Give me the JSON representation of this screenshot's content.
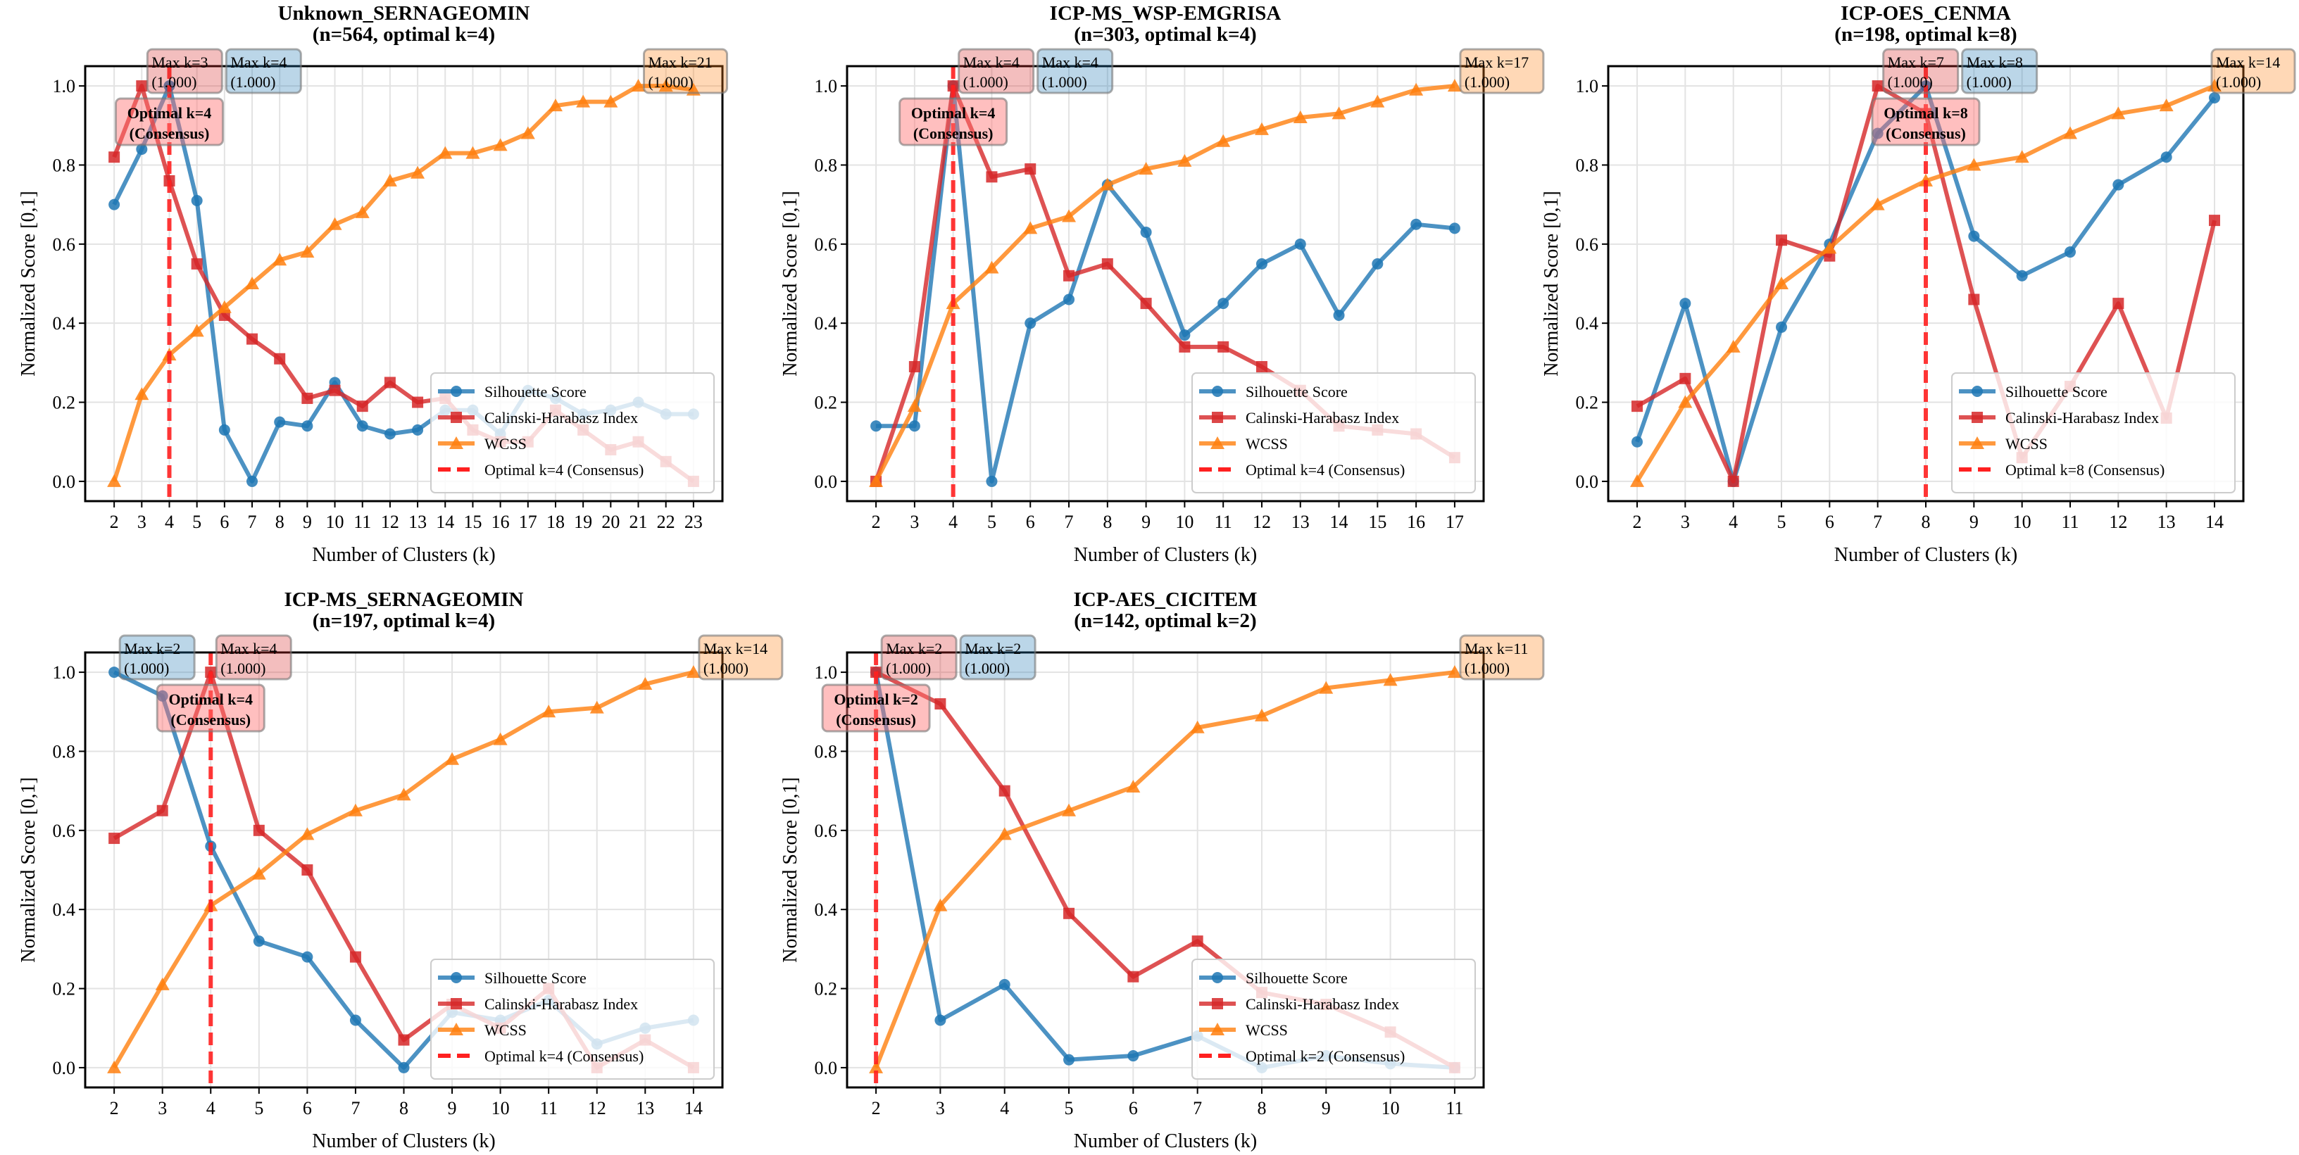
{
  "colors": {
    "silhouette": "#1f77b4",
    "calinski_harabasz": "#d62728",
    "wcss": "#ff7f0e",
    "optimal": "#ff2020"
  },
  "chart_data": [
    {
      "type": "line",
      "title": "Unknown_SERNAGEOMIN",
      "subtitle": "(n=564, optimal k=4)",
      "xlabel": "Number of Clusters (k)",
      "ylabel": "Normalized Score [0,1]",
      "yticks": [
        "0.0",
        "0.2",
        "0.4",
        "0.6",
        "0.8",
        "1.0"
      ],
      "ylim": [
        -0.05,
        1.05
      ],
      "grid": true,
      "legend_placement": "lower-right",
      "k": [
        2,
        3,
        4,
        5,
        6,
        7,
        8,
        9,
        10,
        11,
        12,
        13,
        14,
        15,
        16,
        17,
        18,
        19,
        20,
        21,
        22,
        23
      ],
      "optimal_k": 4,
      "optimal_box": [
        "Optimal k=4",
        "(Consensus)"
      ],
      "optimal_legend": "Optimal k=4 (Consensus)",
      "series": [
        {
          "key": "silhouette",
          "name": "Silhouette Score",
          "marker": "circle",
          "values": [
            0.7,
            0.84,
            1.0,
            0.71,
            0.13,
            0.0,
            0.15,
            0.14,
            0.25,
            0.14,
            0.12,
            0.13,
            0.18,
            0.18,
            0.12,
            0.23,
            0.21,
            0.17,
            0.18,
            0.2,
            0.17,
            0.17
          ]
        },
        {
          "key": "calinski_harabasz",
          "name": "Calinski-Harabasz Index",
          "marker": "square",
          "values": [
            0.82,
            1.0,
            0.76,
            0.55,
            0.42,
            0.36,
            0.31,
            0.21,
            0.23,
            0.19,
            0.25,
            0.2,
            0.21,
            0.13,
            0.1,
            0.1,
            0.18,
            0.13,
            0.08,
            0.1,
            0.05,
            0.0
          ]
        },
        {
          "key": "wcss",
          "name": "WCSS",
          "marker": "triangle",
          "values": [
            0.0,
            0.22,
            0.32,
            0.38,
            0.44,
            0.5,
            0.56,
            0.58,
            0.65,
            0.68,
            0.76,
            0.78,
            0.83,
            0.83,
            0.85,
            0.88,
            0.95,
            0.96,
            0.96,
            1.0,
            1.0,
            0.99
          ]
        }
      ],
      "annotations": [
        {
          "series": "calinski_harabasz",
          "k": 3,
          "label": "Max k=3",
          "value": "(1.000)"
        },
        {
          "series": "silhouette",
          "k": 4,
          "label": "Max k=4",
          "value": "(1.000)"
        },
        {
          "series": "wcss",
          "k": 21,
          "label": "Max k=21",
          "value": "(1.000)"
        }
      ]
    },
    {
      "type": "line",
      "title": "ICP-MS_WSP-EMGRISA",
      "subtitle": "(n=303, optimal k=4)",
      "xlabel": "Number of Clusters (k)",
      "ylabel": "Normalized Score [0,1]",
      "yticks": [
        "0.0",
        "0.2",
        "0.4",
        "0.6",
        "0.8",
        "1.0"
      ],
      "ylim": [
        -0.05,
        1.05
      ],
      "grid": true,
      "legend_placement": "lower-right",
      "k": [
        2,
        3,
        4,
        5,
        6,
        7,
        8,
        9,
        10,
        11,
        12,
        13,
        14,
        15,
        16,
        17
      ],
      "optimal_k": 4,
      "optimal_box": [
        "Optimal k=4",
        "(Consensus)"
      ],
      "optimal_legend": "Optimal k=4 (Consensus)",
      "series": [
        {
          "key": "silhouette",
          "name": "Silhouette Score",
          "marker": "circle",
          "values": [
            0.14,
            0.14,
            1.0,
            0.0,
            0.4,
            0.46,
            0.75,
            0.63,
            0.37,
            0.45,
            0.55,
            0.6,
            0.42,
            0.55,
            0.65,
            0.64
          ]
        },
        {
          "key": "calinski_harabasz",
          "name": "Calinski-Harabasz Index",
          "marker": "square",
          "values": [
            0.0,
            0.29,
            1.0,
            0.77,
            0.79,
            0.52,
            0.55,
            0.45,
            0.34,
            0.34,
            0.29,
            0.23,
            0.14,
            0.13,
            0.12,
            0.06
          ]
        },
        {
          "key": "wcss",
          "name": "WCSS",
          "marker": "triangle",
          "values": [
            0.0,
            0.19,
            0.45,
            0.54,
            0.64,
            0.67,
            0.75,
            0.79,
            0.81,
            0.86,
            0.89,
            0.92,
            0.93,
            0.96,
            0.99,
            1.0
          ]
        }
      ],
      "annotations": [
        {
          "series": "calinski_harabasz",
          "k": 4,
          "label": "Max k=4",
          "value": "(1.000)"
        },
        {
          "series": "silhouette",
          "k": 4,
          "label": "Max k=4",
          "value": "(1.000)"
        },
        {
          "series": "wcss",
          "k": 17,
          "label": "Max k=17",
          "value": "(1.000)"
        }
      ]
    },
    {
      "type": "line",
      "title": "ICP-OES_CENMA",
      "subtitle": "(n=198, optimal k=8)",
      "xlabel": "Number of Clusters (k)",
      "ylabel": "Normalized Score [0,1]",
      "yticks": [
        "0.0",
        "0.2",
        "0.4",
        "0.6",
        "0.8",
        "1.0"
      ],
      "ylim": [
        -0.05,
        1.05
      ],
      "grid": true,
      "legend_placement": "lower-right",
      "k": [
        2,
        3,
        4,
        5,
        6,
        7,
        8,
        9,
        10,
        11,
        12,
        13,
        14
      ],
      "optimal_k": 8,
      "optimal_box": [
        "Optimal k=8",
        "(Consensus)"
      ],
      "optimal_legend": "Optimal k=8 (Consensus)",
      "series": [
        {
          "key": "silhouette",
          "name": "Silhouette Score",
          "marker": "circle",
          "values": [
            0.1,
            0.45,
            0.0,
            0.39,
            0.6,
            0.88,
            1.0,
            0.62,
            0.52,
            0.58,
            0.75,
            0.82,
            0.97
          ]
        },
        {
          "key": "calinski_harabasz",
          "name": "Calinski-Harabasz Index",
          "marker": "square",
          "values": [
            0.19,
            0.26,
            0.0,
            0.61,
            0.57,
            1.0,
            0.93,
            0.46,
            0.06,
            0.24,
            0.45,
            0.16,
            0.66
          ]
        },
        {
          "key": "wcss",
          "name": "WCSS",
          "marker": "triangle",
          "values": [
            0.0,
            0.2,
            0.34,
            0.5,
            0.59,
            0.7,
            0.76,
            0.8,
            0.82,
            0.88,
            0.93,
            0.95,
            1.0
          ]
        }
      ],
      "annotations": [
        {
          "series": "calinski_harabasz",
          "k": 7,
          "label": "Max k=7",
          "value": "(1.000)"
        },
        {
          "series": "silhouette",
          "k": 8,
          "label": "Max k=8",
          "value": "(1.000)"
        },
        {
          "series": "wcss",
          "k": 14,
          "label": "Max k=14",
          "value": "(1.000)"
        }
      ]
    },
    {
      "type": "line",
      "title": "ICP-MS_SERNAGEOMIN",
      "subtitle": "(n=197, optimal k=4)",
      "xlabel": "Number of Clusters (k)",
      "ylabel": "Normalized Score [0,1]",
      "yticks": [
        "0.0",
        "0.2",
        "0.4",
        "0.6",
        "0.8",
        "1.0"
      ],
      "ylim": [
        -0.05,
        1.05
      ],
      "grid": true,
      "legend_placement": "lower-right",
      "k": [
        2,
        3,
        4,
        5,
        6,
        7,
        8,
        9,
        10,
        11,
        12,
        13,
        14
      ],
      "optimal_k": 4,
      "optimal_box": [
        "Optimal k=4",
        "(Consensus)"
      ],
      "optimal_legend": "Optimal k=4 (Consensus)",
      "series": [
        {
          "key": "silhouette",
          "name": "Silhouette Score",
          "marker": "circle",
          "values": [
            1.0,
            0.94,
            0.56,
            0.32,
            0.28,
            0.12,
            0.0,
            0.14,
            0.12,
            0.17,
            0.06,
            0.1,
            0.12
          ]
        },
        {
          "key": "calinski_harabasz",
          "name": "Calinski-Harabasz Index",
          "marker": "square",
          "values": [
            0.58,
            0.65,
            1.0,
            0.6,
            0.5,
            0.28,
            0.07,
            0.16,
            0.1,
            0.2,
            0.0,
            0.07,
            0.0
          ]
        },
        {
          "key": "wcss",
          "name": "WCSS",
          "marker": "triangle",
          "values": [
            0.0,
            0.21,
            0.41,
            0.49,
            0.59,
            0.65,
            0.69,
            0.78,
            0.83,
            0.9,
            0.91,
            0.97,
            1.0
          ]
        }
      ],
      "annotations": [
        {
          "series": "silhouette",
          "k": 2,
          "label": "Max k=2",
          "value": "(1.000)"
        },
        {
          "series": "calinski_harabasz",
          "k": 4,
          "label": "Max k=4",
          "value": "(1.000)"
        },
        {
          "series": "wcss",
          "k": 14,
          "label": "Max k=14",
          "value": "(1.000)"
        }
      ]
    },
    {
      "type": "line",
      "title": "ICP-AES_CICITEM",
      "subtitle": "(n=142, optimal k=2)",
      "xlabel": "Number of Clusters (k)",
      "ylabel": "Normalized Score [0,1]",
      "yticks": [
        "0.0",
        "0.2",
        "0.4",
        "0.6",
        "0.8",
        "1.0"
      ],
      "ylim": [
        -0.05,
        1.05
      ],
      "grid": true,
      "legend_placement": "lower-right",
      "k": [
        2,
        3,
        4,
        5,
        6,
        7,
        8,
        9,
        10,
        11
      ],
      "optimal_k": 2,
      "optimal_box": [
        "Optimal k=2",
        "(Consensus)"
      ],
      "optimal_legend": "Optimal k=2 (Consensus)",
      "series": [
        {
          "key": "silhouette",
          "name": "Silhouette Score",
          "marker": "circle",
          "values": [
            1.0,
            0.12,
            0.21,
            0.02,
            0.03,
            0.08,
            0.0,
            0.03,
            0.01,
            0.0
          ]
        },
        {
          "key": "calinski_harabasz",
          "name": "Calinski-Harabasz Index",
          "marker": "square",
          "values": [
            1.0,
            0.92,
            0.7,
            0.39,
            0.23,
            0.32,
            0.19,
            0.16,
            0.09,
            0.0
          ]
        },
        {
          "key": "wcss",
          "name": "WCSS",
          "marker": "triangle",
          "values": [
            0.0,
            0.41,
            0.59,
            0.65,
            0.71,
            0.86,
            0.89,
            0.96,
            0.98,
            1.0
          ]
        }
      ],
      "annotations": [
        {
          "series": "calinski_harabasz",
          "k": 2,
          "label": "Max k=2",
          "value": "(1.000)"
        },
        {
          "series": "silhouette",
          "k": 2,
          "label": "Max k=2",
          "value": "(1.000)"
        },
        {
          "series": "wcss",
          "k": 11,
          "label": "Max k=11",
          "value": "(1.000)"
        }
      ]
    }
  ]
}
